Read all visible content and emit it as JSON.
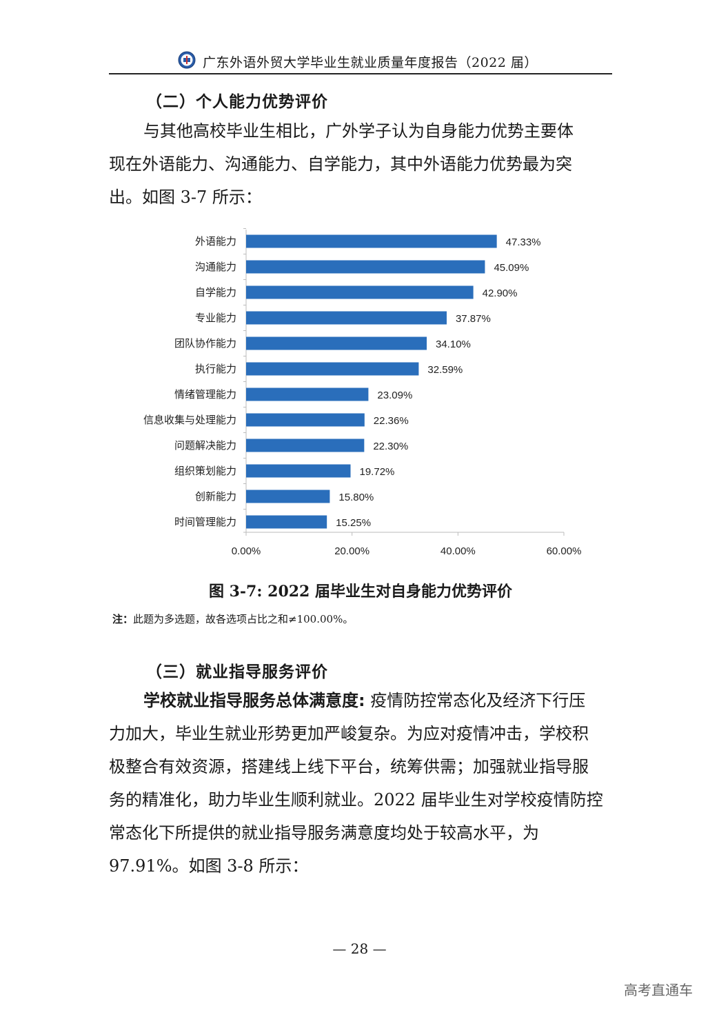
{
  "header": {
    "title": "广东外语外贸大学毕业生就业质量年度报告（2022 届）",
    "logo_icon": "university-seal-icon"
  },
  "section2": {
    "heading": "（二）个人能力优势评价",
    "paragraph_lines": [
      "与其他高校毕业生相比，广外学子认为自身能力优势主要体",
      "现在外语能力、沟通能力、自学能力，其中外语能力优势最为突",
      "出。如图 3-7 所示："
    ]
  },
  "chart_data": {
    "type": "bar",
    "orientation": "horizontal",
    "categories": [
      "外语能力",
      "沟通能力",
      "自学能力",
      "专业能力",
      "团队协作能力",
      "执行能力",
      "情绪管理能力",
      "信息收集与处理能力",
      "问题解决能力",
      "组织策划能力",
      "创新能力",
      "时间管理能力"
    ],
    "values": [
      47.33,
      45.09,
      42.9,
      37.87,
      34.1,
      32.59,
      23.09,
      22.36,
      22.3,
      19.72,
      15.8,
      15.25
    ],
    "value_labels": [
      "47.33%",
      "45.09%",
      "42.90%",
      "37.87%",
      "34.10%",
      "32.59%",
      "23.09%",
      "22.36%",
      "22.30%",
      "19.72%",
      "15.80%",
      "15.25%"
    ],
    "xlim": [
      0,
      60
    ],
    "xticks": [
      "0.00%",
      "20.00%",
      "40.00%",
      "60.00%"
    ],
    "xtick_values": [
      0,
      20,
      40,
      60
    ],
    "bar_color": "#2a6ebb",
    "grid": false,
    "legend": "none"
  },
  "figure": {
    "caption": "图 3-7:  2022 届毕业生对自身能力优势评价",
    "note_label": "注：",
    "note_text": "此题为多选题，故各选项占比之和≠100.00%。"
  },
  "section3": {
    "heading": "（三）就业指导服务评价",
    "lead_bold": "学校就业指导服务总体满意度:",
    "first_line_rest": " 疫情防控常态化及经济下行压",
    "paragraph_lines": [
      "力加大，毕业生就业形势更加严峻复杂。为应对疫情冲击，学校积",
      "极整合有效资源，搭建线上线下平台，统筹供需；加强就业指导服",
      "务的精准化，助力毕业生顺利就业。2022 届毕业生对学校疫情防控",
      "常态化下所提供的就业指导服务满意度均处于较高水平，为",
      "97.91%。如图 3-8 所示："
    ]
  },
  "footer": {
    "page_number": "— 28 —",
    "watermark": "高考直通车"
  }
}
